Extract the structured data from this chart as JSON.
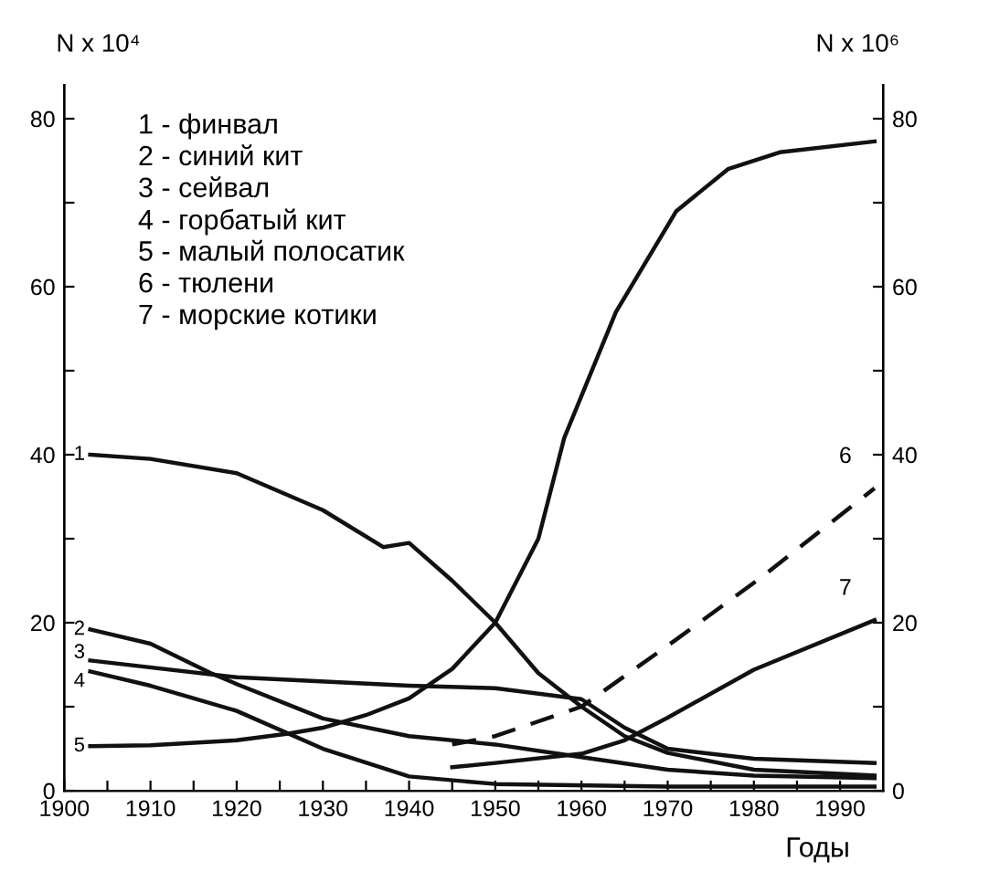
{
  "chart_data": {
    "type": "line",
    "xlabel": "Годы",
    "ylabel": "N x 10⁴",
    "y2label": "N x 10⁶",
    "xlim": [
      1900,
      1995
    ],
    "xticks": [
      1900,
      {
        "value": 1905,
        "label": null
      },
      1910,
      {
        "value": 1915,
        "label": null
      },
      1920,
      {
        "value": 1925,
        "label": null
      },
      1930,
      {
        "value": 1935,
        "label": null
      },
      1940,
      {
        "value": 1945,
        "label": null
      },
      1950,
      {
        "value": 1955,
        "label": null
      },
      1960,
      {
        "value": 1965,
        "label": null
      },
      1970,
      {
        "value": 1975,
        "label": null
      },
      1980,
      {
        "value": 1985,
        "label": null
      },
      1990
    ],
    "ylim": [
      0,
      84
    ],
    "yticks": [
      0,
      {
        "value": 10,
        "label": null
      },
      20,
      {
        "value": 30,
        "label": null
      },
      40,
      {
        "value": 50,
        "label": null
      },
      60,
      {
        "value": 70,
        "label": null
      },
      80
    ],
    "y2lim": [
      0,
      84
    ],
    "y2ticks": [
      0,
      {
        "value": 10,
        "label": null
      },
      20,
      {
        "value": 30,
        "label": null
      },
      40,
      {
        "value": 50,
        "label": null
      },
      60,
      {
        "value": 70,
        "label": null
      },
      80
    ],
    "grid": false,
    "marker": "none",
    "line_style": "solid",
    "series": [
      {
        "name": "1",
        "color": "#111111",
        "x": [
          1903,
          1910,
          1920,
          1930,
          1937,
          1940,
          1945,
          1950,
          1955,
          1960,
          1965,
          1970,
          1980,
          1994
        ],
        "values": [
          40,
          39.5,
          37.8,
          33.4,
          29,
          29.5,
          25,
          20,
          14,
          10,
          6.5,
          4.5,
          2.5,
          1.8
        ]
      },
      {
        "name": "2",
        "color": "#111111",
        "x": [
          1903,
          1910,
          1917,
          1920,
          1930,
          1940,
          1950,
          1960,
          1970,
          1980,
          1994
        ],
        "values": [
          19.2,
          17.5,
          14,
          12.7,
          8.6,
          6.5,
          5.5,
          4,
          2.5,
          1.8,
          1.5
        ]
      },
      {
        "name": "3",
        "color": "#111111",
        "x": [
          1903,
          1920,
          1940,
          1950,
          1960,
          1965,
          1970,
          1980,
          1994
        ],
        "values": [
          15.5,
          13.5,
          12.5,
          12.2,
          10.9,
          7.5,
          5,
          3.8,
          3.3
        ]
      },
      {
        "name": "4",
        "color": "#111111",
        "x": [
          1903,
          1910,
          1920,
          1930,
          1940,
          1950,
          1970,
          1994
        ],
        "values": [
          14.2,
          12.5,
          9.5,
          5,
          1.7,
          0.8,
          0.5,
          0.5
        ]
      },
      {
        "name": "5",
        "color": "#111111",
        "x": [
          1903,
          1910,
          1920,
          1926,
          1930,
          1935,
          1940,
          1945,
          1950,
          1955,
          1958,
          1964,
          1971,
          1977,
          1983,
          1994
        ],
        "values": [
          5.3,
          5.4,
          6,
          6.8,
          7.5,
          9,
          11,
          14.5,
          20,
          30,
          42,
          57,
          69,
          74,
          76,
          77.3
        ]
      },
      {
        "name": "6",
        "color": "#111111",
        "axis": "y2",
        "line_style": "dashed",
        "x": [
          1945,
          1950,
          1960,
          1971,
          1981,
          1994
        ],
        "values": [
          5.5,
          6.5,
          10,
          18,
          25.5,
          36
        ]
      },
      {
        "name": "7",
        "color": "#111111",
        "axis": "y2",
        "x": [
          1945,
          1950,
          1960,
          1965,
          1970,
          1980,
          1994
        ],
        "values": [
          2.8,
          3.3,
          4.4,
          6,
          8.7,
          14.4,
          20.3
        ]
      }
    ],
    "annotations": [
      "1 - финвал",
      "2 - синий кит",
      "3 - сейвал",
      "4 - горбатый кит",
      "5 - малый полосатик",
      "6 - тюлени",
      "7 - морские котики"
    ]
  }
}
